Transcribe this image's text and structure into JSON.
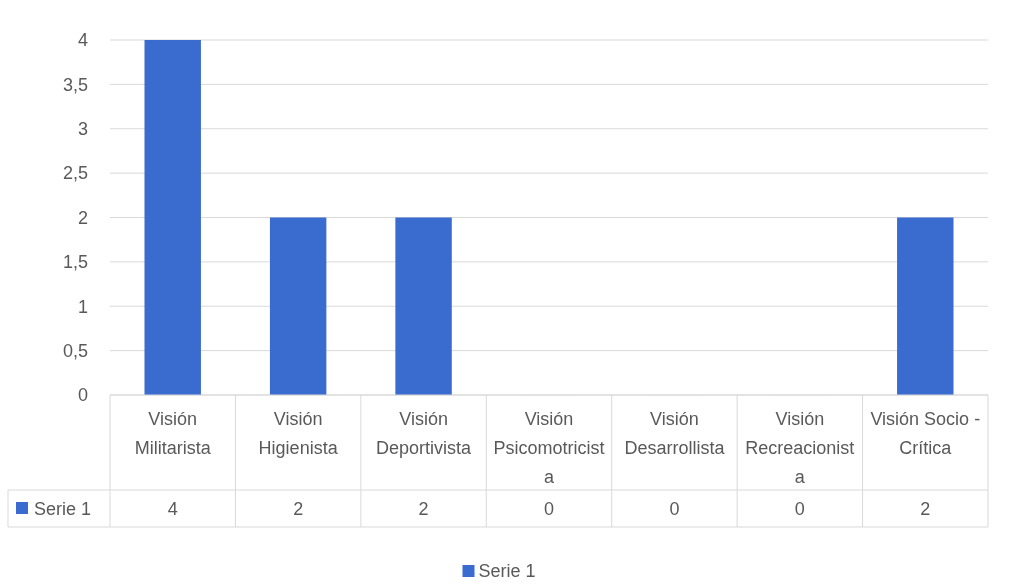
{
  "chart_data": {
    "type": "bar",
    "categories": [
      "Visión Militarista",
      "Visión Higienista",
      "Visión Deportivista",
      "Visión Psicomotricista",
      "Visión Desarrollista",
      "Visión Recreacionista",
      "Visión Socio - Crítica"
    ],
    "series": [
      {
        "name": "Serie 1",
        "color": "#3a6ccf",
        "values": [
          4,
          2,
          2,
          0,
          0,
          0,
          2
        ]
      }
    ],
    "ylim": [
      0,
      4
    ],
    "yticks": [
      0,
      {
        "value": 0.5,
        "label": "0,5"
      },
      1,
      {
        "value": 1.5,
        "label": "1,5"
      },
      2,
      {
        "value": 2.5,
        "label": "2,5"
      },
      3,
      {
        "value": 3.5,
        "label": "3,5"
      },
      4
    ],
    "grid": "y",
    "legend": "bottom",
    "data_labels": true
  }
}
